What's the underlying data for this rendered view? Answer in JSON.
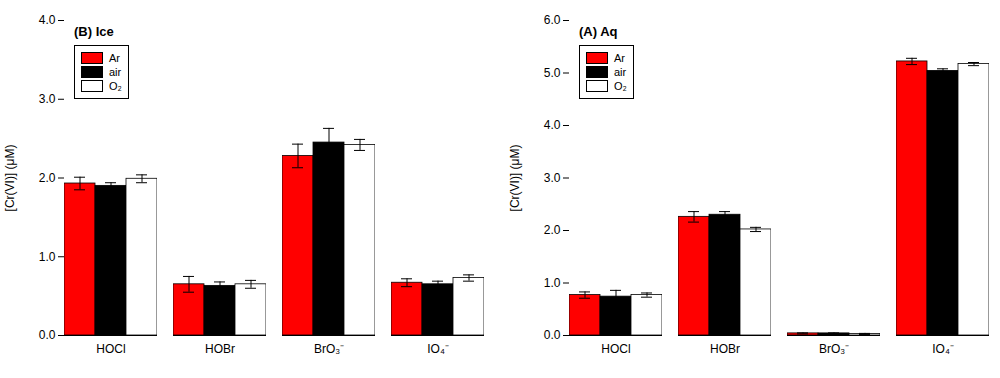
{
  "chart_data": [
    {
      "type": "bar",
      "title": "(B) Ice",
      "categories": [
        "HOCl",
        "HOBr",
        "BrO₃⁻",
        "IO₄⁻"
      ],
      "series": [
        {
          "name": "Ar",
          "color": "#ff0000",
          "values": [
            1.93,
            0.65,
            2.28,
            0.67
          ],
          "errors": [
            0.08,
            0.1,
            0.15,
            0.05
          ]
        },
        {
          "name": "air",
          "color": "#000000",
          "values": [
            1.9,
            0.63,
            2.45,
            0.65
          ],
          "errors": [
            0.04,
            0.05,
            0.18,
            0.04
          ]
        },
        {
          "name": "O₂",
          "color": "#ffffff",
          "values": [
            1.99,
            0.65,
            2.42,
            0.73
          ],
          "errors": [
            0.05,
            0.05,
            0.07,
            0.04
          ]
        }
      ],
      "ylabel": "[Cr(VI)] (μM)",
      "ylim": [
        0,
        4
      ],
      "yticks": [
        0,
        1,
        2,
        3,
        4
      ],
      "grid": false,
      "legend": "upper left"
    },
    {
      "type": "bar",
      "title": "(A) Aq",
      "categories": [
        "HOCl",
        "HOBr",
        "BrO₃⁻",
        "IO₄⁻"
      ],
      "series": [
        {
          "name": "Ar",
          "color": "#ff0000",
          "values": [
            0.77,
            2.26,
            0.04,
            5.22
          ],
          "errors": [
            0.06,
            0.1,
            0.01,
            0.06
          ]
        },
        {
          "name": "air",
          "color": "#000000",
          "values": [
            0.74,
            2.3,
            0.04,
            5.04
          ],
          "errors": [
            0.12,
            0.06,
            0.01,
            0.04
          ]
        },
        {
          "name": "O₂",
          "color": "#ffffff",
          "values": [
            0.77,
            2.02,
            0.03,
            5.17
          ],
          "errors": [
            0.04,
            0.04,
            0.01,
            0.03
          ]
        }
      ],
      "ylabel": "[Cr(VI)] (μM)",
      "ylim": [
        0,
        6
      ],
      "yticks": [
        0,
        1,
        2,
        3,
        4,
        5,
        6
      ],
      "grid": false,
      "legend": "upper left"
    }
  ]
}
